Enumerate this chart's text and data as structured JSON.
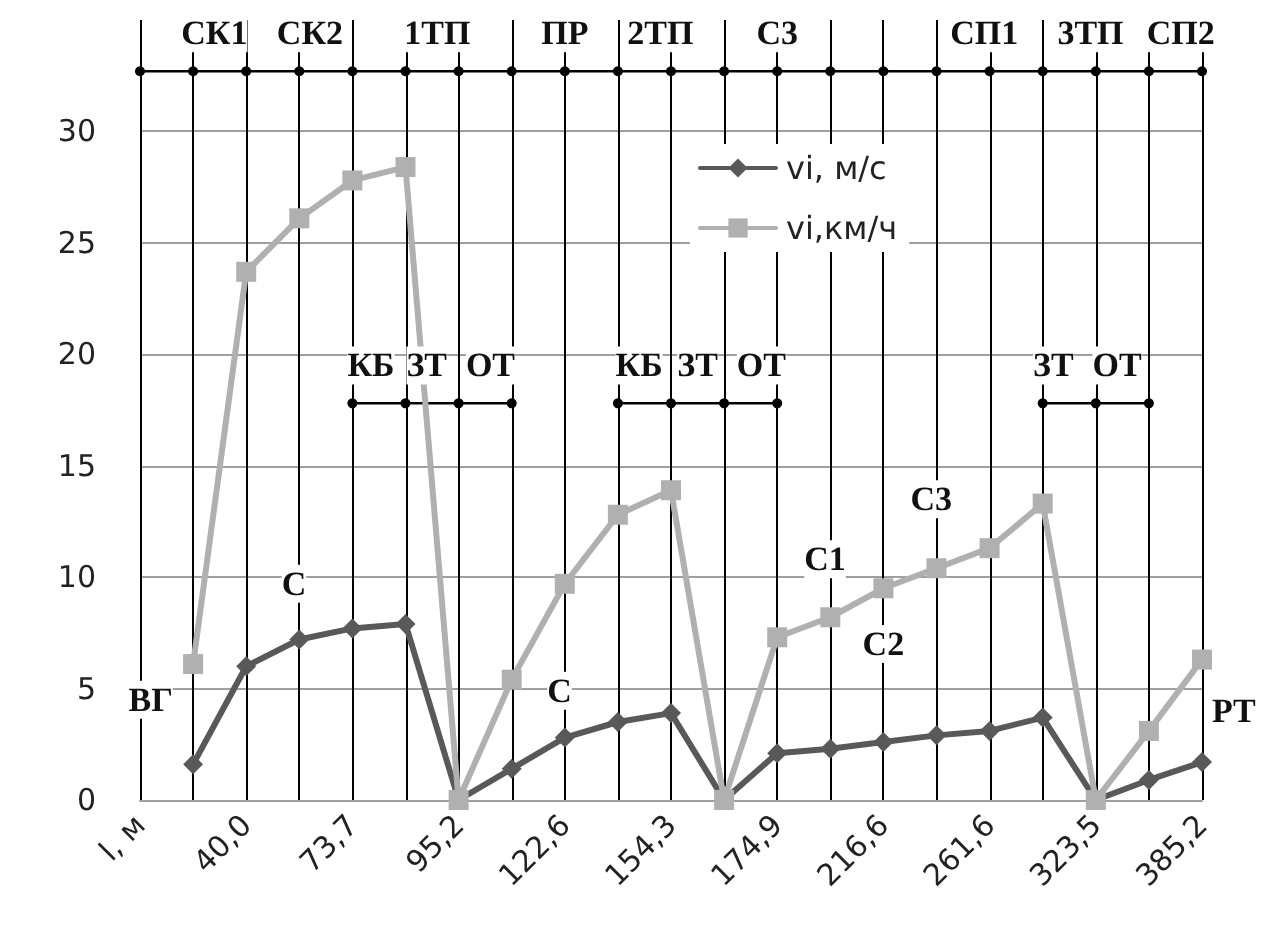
{
  "chart_data": {
    "type": "line",
    "categories": [
      "l, м",
      null,
      "40,0",
      null,
      "73,7",
      null,
      "95,2",
      null,
      "122,6",
      null,
      "154,3",
      null,
      "174,9",
      null,
      "216,6",
      null,
      "261,6",
      null,
      "323,5",
      null,
      "385,2"
    ],
    "ylim": [
      0,
      35
    ],
    "yticks": [
      0,
      5,
      10,
      15,
      20,
      25,
      30
    ],
    "grid": true,
    "legend": "top right",
    "line_style": "solid",
    "series": [
      {
        "name": "vi, м/с",
        "color": "#595959",
        "marker": "diamond",
        "values": [
          null,
          1.6,
          6.0,
          7.2,
          7.7,
          7.9,
          0,
          1.4,
          2.8,
          3.5,
          3.9,
          0,
          2.1,
          2.3,
          2.6,
          2.9,
          3.1,
          3.7,
          0,
          0.9,
          1.7
        ]
      },
      {
        "name": "vi,км/ч",
        "color": "#b0b0b0",
        "marker": "square",
        "values": [
          null,
          6.1,
          23.7,
          26.1,
          27.8,
          28.4,
          0,
          5.4,
          9.7,
          12.8,
          13.9,
          0,
          7.3,
          8.2,
          9.5,
          10.4,
          11.3,
          13.3,
          0,
          3.1,
          6.3
        ]
      },
      {
        "color": "#000000",
        "marker": "circle",
        "values": [
          32.7,
          32.7,
          32.7,
          32.7,
          32.7,
          32.7,
          32.7,
          32.7,
          32.7,
          32.7,
          32.7,
          32.7,
          32.7,
          32.7,
          32.7,
          32.7,
          32.7,
          32.7,
          32.7,
          32.7,
          32.7
        ]
      },
      {
        "color": "#000000",
        "marker": "circle",
        "values": [
          null,
          null,
          null,
          null,
          17.8,
          17.8,
          17.8,
          17.8,
          null,
          17.8,
          17.8,
          17.8,
          17.8,
          null,
          null,
          null,
          null,
          17.8,
          17.8,
          17.8,
          null
        ]
      }
    ],
    "annotations": [
      "СК1",
      "СК2",
      "1ТП",
      "ПР",
      "2ТП",
      "С3",
      "СП1",
      "3ТП",
      "СП2",
      "КБ",
      "ЗТ",
      "ОТ",
      "КБ",
      "ЗТ",
      "ОТ",
      "ЗТ",
      "ОТ",
      "ВГ",
      "С",
      "С",
      "С1",
      "С2",
      "С3",
      "РТ"
    ]
  }
}
